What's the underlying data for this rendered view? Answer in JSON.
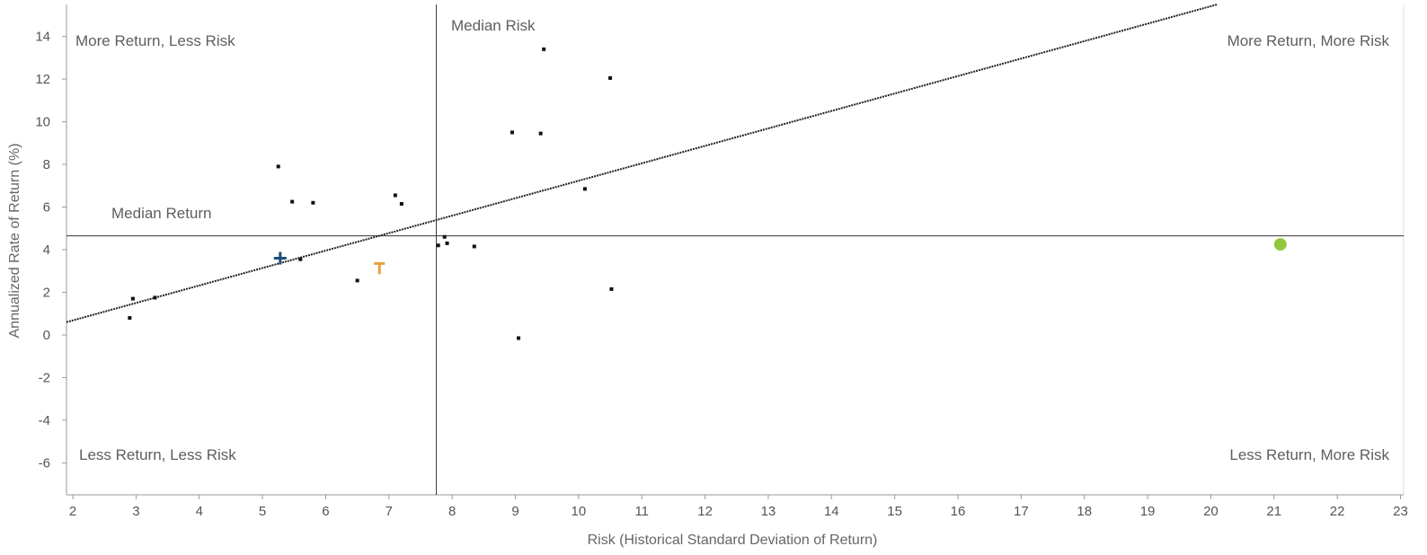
{
  "chart_data": {
    "type": "scatter",
    "title": "",
    "xlabel": "Risk (Historical Standard Deviation of Return)",
    "ylabel": "Annualized Rate of Return (%)",
    "xlim": [
      1.9,
      23.05
    ],
    "ylim": [
      -7.5,
      15.5
    ],
    "xticks": [
      2,
      3,
      4,
      5,
      6,
      7,
      8,
      9,
      10,
      11,
      12,
      13,
      14,
      15,
      16,
      17,
      18,
      19,
      20,
      21,
      22,
      23
    ],
    "yticks": [
      -6,
      -4,
      -2,
      0,
      2,
      4,
      6,
      8,
      10,
      12,
      14
    ],
    "grid": false,
    "median_risk": {
      "label": "Median Risk",
      "x": 7.75
    },
    "median_return": {
      "label": "Median Return",
      "y": 4.65
    },
    "trend_line": {
      "x": [
        1.9,
        20.1
      ],
      "y": [
        0.6,
        15.5
      ]
    },
    "quadrant_labels": {
      "top_left": "More Return, Less Risk",
      "top_right": "More Return, More Risk",
      "bottom_left": "Less Return, Less Risk",
      "bottom_right": "Less Return, More Risk"
    },
    "series": [
      {
        "marker": "square",
        "color": "#111111",
        "points": [
          {
            "x": 2.9,
            "y": 0.8
          },
          {
            "x": 2.95,
            "y": 1.7
          },
          {
            "x": 3.3,
            "y": 1.75
          },
          {
            "x": 5.25,
            "y": 7.9
          },
          {
            "x": 5.47,
            "y": 6.25
          },
          {
            "x": 5.8,
            "y": 6.2
          },
          {
            "x": 5.6,
            "y": 3.55
          },
          {
            "x": 6.5,
            "y": 2.55
          },
          {
            "x": 7.1,
            "y": 6.55
          },
          {
            "x": 7.2,
            "y": 6.15
          },
          {
            "x": 7.78,
            "y": 4.2
          },
          {
            "x": 7.88,
            "y": 4.6
          },
          {
            "x": 7.92,
            "y": 4.3
          },
          {
            "x": 8.35,
            "y": 4.15
          },
          {
            "x": 8.95,
            "y": 9.5
          },
          {
            "x": 9.05,
            "y": -0.15
          },
          {
            "x": 9.4,
            "y": 9.45
          },
          {
            "x": 9.45,
            "y": 13.4
          },
          {
            "x": 10.1,
            "y": 6.85
          },
          {
            "x": 10.5,
            "y": 12.05
          },
          {
            "x": 10.52,
            "y": 2.15
          }
        ]
      },
      {
        "marker": "plus",
        "color": "#1f4e79",
        "points": [
          {
            "x": 5.28,
            "y": 3.6
          }
        ]
      },
      {
        "marker": "T",
        "color": "#e8a040",
        "points": [
          {
            "x": 6.85,
            "y": 3.1
          }
        ]
      },
      {
        "marker": "circle",
        "color": "#92c83e",
        "points": [
          {
            "x": 21.1,
            "y": 4.25
          }
        ]
      }
    ]
  }
}
